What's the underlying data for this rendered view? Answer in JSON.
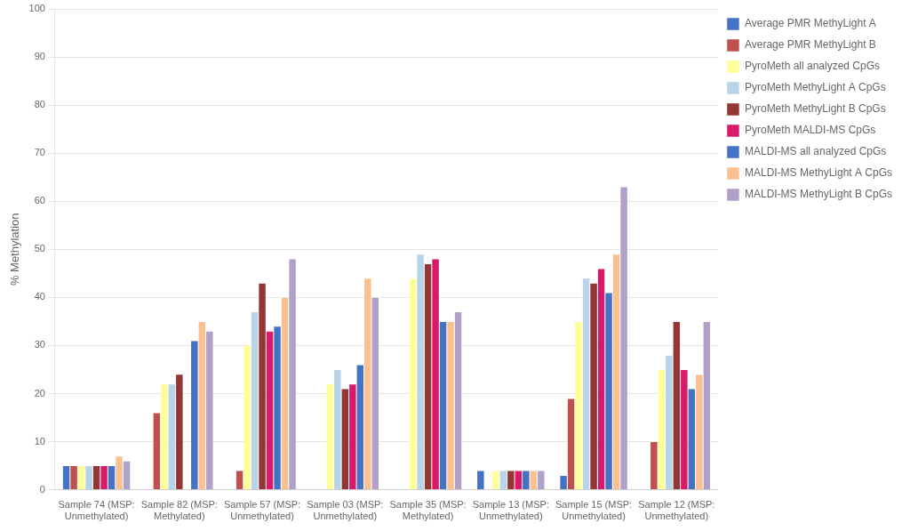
{
  "chart_data": {
    "type": "bar",
    "categories": [
      "Sample 74 (MSP:\nUnmethylated)",
      "Sample 82 (MSP:\nMethylated)",
      "Sample 57 (MSP:\nUnmethylated)",
      "Sample 03 (MSP:\nUnmethylated)",
      "Sample 35 (MSP:\nMethylated)",
      "Sample 13 (MSP:\nUnmethylated)",
      "Sample 15 (MSP:\nUnmethylated)",
      "Sample 12 (MSP:\nUnmethylated)"
    ],
    "series": [
      {
        "name": "Average PMR MethyLight A",
        "color": "#4472C4",
        "values": [
          5,
          0,
          0,
          0,
          0,
          4,
          3,
          0
        ]
      },
      {
        "name": "Average PMR MethyLight B",
        "color": "#C0504D",
        "values": [
          5,
          16,
          4,
          0,
          0,
          0,
          19,
          10
        ]
      },
      {
        "name": "PyroMeth all analyzed CpGs",
        "color": "#FFFF99",
        "values": [
          5,
          22,
          30,
          22,
          44,
          4,
          35,
          25
        ]
      },
      {
        "name": "PyroMeth MethyLight A CpGs",
        "color": "#B8D4E8",
        "values": [
          5,
          22,
          37,
          25,
          49,
          4,
          44,
          28
        ]
      },
      {
        "name": "PyroMeth MethyLight B CpGs",
        "color": "#943634",
        "values": [
          5,
          24,
          43,
          21,
          47,
          4,
          43,
          35
        ]
      },
      {
        "name": "PyroMeth MALDI-MS CpGs",
        "color": "#D9196A",
        "values": [
          5,
          0,
          33,
          22,
          48,
          4,
          46,
          25
        ]
      },
      {
        "name": "MALDI-MS all analyzed CpGs",
        "color": "#4472C4",
        "values": [
          5,
          31,
          34,
          26,
          35,
          4,
          41,
          21
        ]
      },
      {
        "name": "MALDI-MS MethyLight A CpGs",
        "color": "#FAC090",
        "values": [
          7,
          35,
          40,
          44,
          35,
          4,
          49,
          24
        ]
      },
      {
        "name": "MALDI-MS MethyLight B CpGs",
        "color": "#B1A0C7",
        "values": [
          6,
          33,
          48,
          40,
          37,
          4,
          63,
          35
        ]
      }
    ],
    "ylabel": "% Methylation",
    "ylim": [
      0,
      100
    ],
    "yticks": [
      0,
      10,
      20,
      30,
      40,
      50,
      60,
      70,
      80,
      90,
      100
    ],
    "grid": true,
    "legend": "right"
  }
}
